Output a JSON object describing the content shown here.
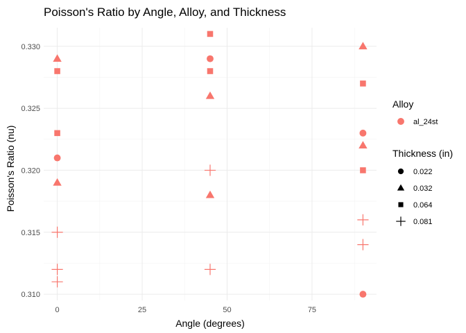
{
  "chart_data": {
    "type": "scatter",
    "title": "Poisson's Ratio by Angle, Alloy, and Thickness",
    "xlabel": "Angle (degrees)",
    "ylabel": "Poisson's Ratio (nu)",
    "xlim": [
      -4,
      94
    ],
    "ylim": [
      0.3095,
      0.3315
    ],
    "x_ticks": [
      0,
      25,
      50,
      75
    ],
    "x_minor_ticks": [
      12.5,
      37.5,
      62.5,
      87.5
    ],
    "y_ticks": [
      0.31,
      0.315,
      0.32,
      0.325,
      0.33
    ],
    "y_minor_ticks": [
      0.3125,
      0.3175,
      0.3225,
      0.3275
    ],
    "x_tick_labels": [
      "0",
      "25",
      "50",
      "75"
    ],
    "y_tick_labels": [
      "0.310",
      "0.315",
      "0.320",
      "0.325",
      "0.330"
    ],
    "grid": true,
    "legend_position": "right",
    "color": "#f8766d",
    "legends": {
      "alloy": {
        "title": "Alloy",
        "entries": [
          {
            "label": "al_24st",
            "shape": "circle"
          }
        ]
      },
      "thickness": {
        "title": "Thickness (in)",
        "entries": [
          {
            "label": "0.022",
            "shape": "circle"
          },
          {
            "label": "0.032",
            "shape": "triangle"
          },
          {
            "label": "0.064",
            "shape": "square"
          },
          {
            "label": "0.081",
            "shape": "plus"
          }
        ]
      }
    },
    "series": [
      {
        "alloy": "al_24st",
        "thickness": "0.022",
        "shape": "circle",
        "points": [
          {
            "x": 0,
            "y": 0.321
          },
          {
            "x": 45,
            "y": 0.329
          },
          {
            "x": 90,
            "y": 0.323
          },
          {
            "x": 90,
            "y": 0.31
          }
        ]
      },
      {
        "alloy": "al_24st",
        "thickness": "0.032",
        "shape": "triangle",
        "points": [
          {
            "x": 0,
            "y": 0.329
          },
          {
            "x": 0,
            "y": 0.319
          },
          {
            "x": 45,
            "y": 0.326
          },
          {
            "x": 45,
            "y": 0.318
          },
          {
            "x": 90,
            "y": 0.33
          },
          {
            "x": 90,
            "y": 0.322
          }
        ]
      },
      {
        "alloy": "al_24st",
        "thickness": "0.064",
        "shape": "square",
        "points": [
          {
            "x": 0,
            "y": 0.328
          },
          {
            "x": 0,
            "y": 0.323
          },
          {
            "x": 45,
            "y": 0.331
          },
          {
            "x": 45,
            "y": 0.328
          },
          {
            "x": 90,
            "y": 0.327
          },
          {
            "x": 90,
            "y": 0.32
          }
        ]
      },
      {
        "alloy": "al_24st",
        "thickness": "0.081",
        "shape": "plus",
        "points": [
          {
            "x": 0,
            "y": 0.315
          },
          {
            "x": 0,
            "y": 0.312
          },
          {
            "x": 0,
            "y": 0.311
          },
          {
            "x": 45,
            "y": 0.32
          },
          {
            "x": 45,
            "y": 0.312
          },
          {
            "x": 90,
            "y": 0.316
          },
          {
            "x": 90,
            "y": 0.314
          }
        ]
      }
    ]
  }
}
